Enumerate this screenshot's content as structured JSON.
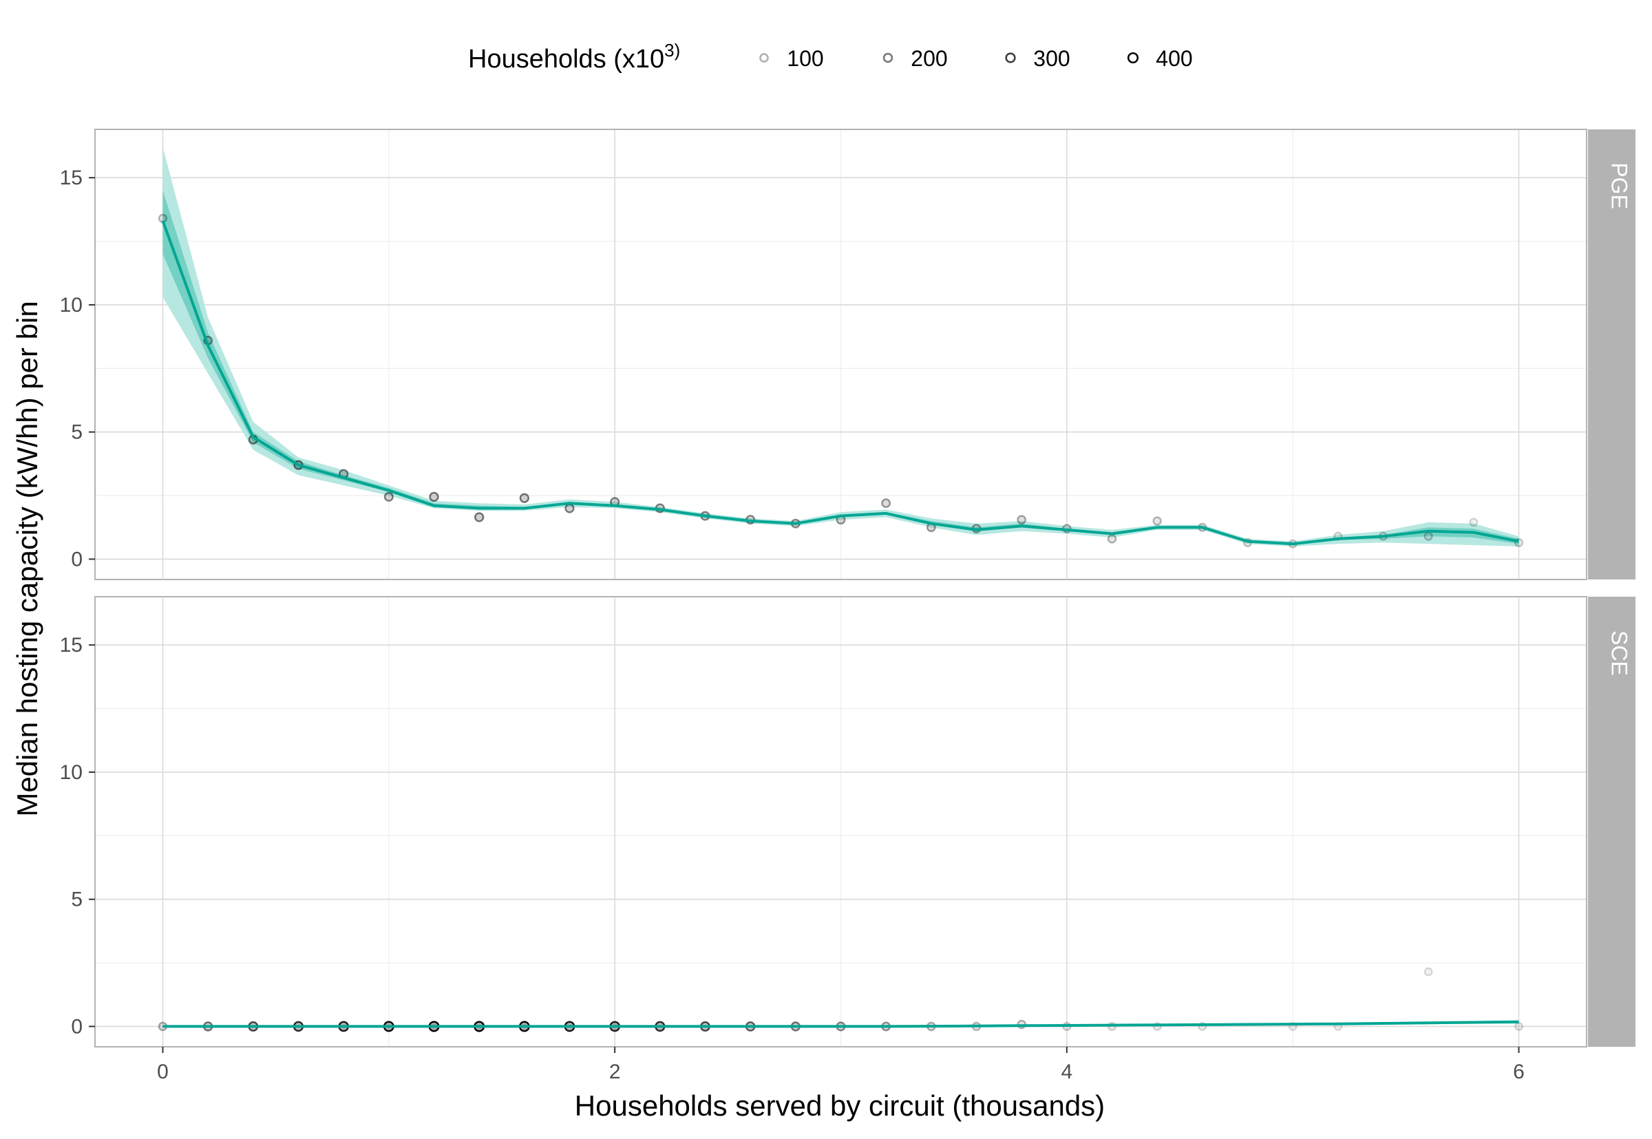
{
  "chart_data": {
    "type": "line",
    "xlabel": "Households served by circuit (thousands)",
    "ylabel": "Median hosting capacity (kW/hh) per bin",
    "xlim": [
      -0.3,
      6.3
    ],
    "ylim": [
      -0.8,
      16.9
    ],
    "x_ticks": [
      0,
      2,
      4,
      6
    ],
    "x_tick_labels": [
      "0",
      "2",
      "4",
      "6"
    ],
    "y_ticks": [
      0,
      5,
      10,
      15
    ],
    "y_tick_labels": [
      "0",
      "5",
      "10",
      "15"
    ],
    "grid": true,
    "legend": {
      "title_text": "Households (x10",
      "title_sup": "3)",
      "position": "top",
      "labels": [
        "100",
        "200",
        "300",
        "400"
      ],
      "values": [
        100,
        200,
        300,
        400
      ]
    },
    "colors": {
      "line": "#00a693",
      "band_outer": "#b3e6df",
      "band_inner": "#5ec9ba",
      "strip_bg": "#b3b3b3",
      "panel_border": "#b3b3b3",
      "grid_major": "#dedede",
      "grid_minor": "#efefef"
    },
    "panels": [
      {
        "label": "PGE",
        "line": {
          "x": [
            0,
            0.2,
            0.4,
            0.6,
            0.8,
            1.0,
            1.2,
            1.4,
            1.6,
            1.8,
            2.0,
            2.2,
            2.4,
            2.6,
            2.8,
            3.0,
            3.2,
            3.4,
            3.6,
            3.8,
            4.0,
            4.2,
            4.4,
            4.6,
            4.8,
            5.0,
            5.2,
            5.4,
            5.6,
            5.8,
            6.0
          ],
          "y": [
            13.3,
            8.4,
            4.8,
            3.7,
            3.2,
            2.7,
            2.1,
            2.0,
            2.0,
            2.2,
            2.1,
            1.95,
            1.7,
            1.5,
            1.4,
            1.7,
            1.8,
            1.4,
            1.15,
            1.3,
            1.15,
            1.0,
            1.25,
            1.25,
            0.7,
            0.6,
            0.8,
            0.9,
            1.1,
            1.05,
            0.7
          ],
          "band_outer_low": [
            10.3,
            7.3,
            4.3,
            3.3,
            2.9,
            2.5,
            2.0,
            1.9,
            1.9,
            2.05,
            2.0,
            1.85,
            1.6,
            1.4,
            1.3,
            1.55,
            1.65,
            1.25,
            0.95,
            1.1,
            1.0,
            0.85,
            1.15,
            1.15,
            0.6,
            0.5,
            0.6,
            0.65,
            0.6,
            0.55,
            0.5
          ],
          "band_outer_high": [
            16.2,
            9.5,
            5.4,
            4.0,
            3.5,
            2.9,
            2.3,
            2.2,
            2.15,
            2.35,
            2.25,
            2.05,
            1.8,
            1.6,
            1.5,
            1.85,
            1.95,
            1.6,
            1.4,
            1.5,
            1.3,
            1.15,
            1.35,
            1.35,
            0.8,
            0.7,
            0.95,
            1.1,
            1.45,
            1.4,
            0.9
          ],
          "band_inner_low": [
            12.0,
            7.9,
            4.6,
            3.55,
            3.1,
            2.65,
            2.05,
            1.95,
            1.95,
            2.15,
            2.05,
            1.9,
            1.65,
            1.45,
            1.35,
            1.65,
            1.75,
            1.35,
            1.1,
            1.25,
            1.1,
            0.95,
            1.2,
            1.2,
            0.65,
            0.55,
            0.75,
            0.8,
            0.9,
            0.85,
            0.6
          ],
          "band_inner_high": [
            14.5,
            8.9,
            5.0,
            3.85,
            3.3,
            2.8,
            2.2,
            2.1,
            2.05,
            2.25,
            2.15,
            2.0,
            1.75,
            1.55,
            1.45,
            1.75,
            1.85,
            1.5,
            1.25,
            1.4,
            1.2,
            1.05,
            1.3,
            1.3,
            0.75,
            0.65,
            0.85,
            0.95,
            1.25,
            1.2,
            0.8
          ]
        },
        "points": {
          "x": [
            0,
            0.2,
            0.4,
            0.6,
            0.8,
            1.0,
            1.2,
            1.4,
            1.6,
            1.8,
            2.0,
            2.2,
            2.4,
            2.6,
            2.8,
            3.0,
            3.2,
            3.4,
            3.6,
            3.8,
            4.0,
            4.2,
            4.4,
            4.6,
            4.8,
            5.0,
            5.2,
            5.4,
            5.6,
            5.8,
            6.0
          ],
          "y": [
            13.4,
            8.6,
            4.7,
            3.7,
            3.35,
            2.45,
            2.45,
            1.65,
            2.4,
            2.0,
            2.25,
            2.0,
            1.7,
            1.55,
            1.4,
            1.55,
            2.2,
            1.25,
            1.2,
            1.55,
            1.2,
            0.8,
            1.5,
            1.25,
            0.65,
            0.6,
            0.9,
            0.9,
            0.9,
            1.45,
            0.65
          ],
          "households": [
            90,
            150,
            190,
            200,
            190,
            180,
            200,
            200,
            200,
            190,
            180,
            180,
            170,
            170,
            160,
            150,
            140,
            140,
            130,
            120,
            110,
            100,
            90,
            80,
            70,
            60,
            50,
            60,
            70,
            40,
            60
          ]
        }
      },
      {
        "label": "SCE",
        "line": {
          "x": [
            0,
            0.2,
            0.4,
            0.6,
            0.8,
            1.0,
            1.2,
            1.4,
            1.6,
            1.8,
            2.0,
            2.2,
            2.4,
            2.6,
            2.8,
            3.0,
            3.2,
            3.4,
            3.6,
            3.8,
            4.0,
            4.2,
            4.4,
            4.6,
            4.8,
            5.0,
            5.2,
            5.4,
            5.6,
            5.8,
            6.0
          ],
          "y": [
            0,
            0,
            0,
            0,
            0,
            0,
            0,
            0,
            0,
            0,
            0,
            0,
            0,
            0,
            0,
            0,
            0,
            0.01,
            0.02,
            0.03,
            0.04,
            0.05,
            0.06,
            0.07,
            0.08,
            0.09,
            0.1,
            0.12,
            0.14,
            0.16,
            0.18
          ],
          "band_outer_low": [
            0,
            0,
            0,
            0,
            0,
            0,
            0,
            0,
            0,
            0,
            0,
            0,
            0,
            0,
            0,
            0,
            0,
            0,
            0.01,
            0.02,
            0.02,
            0.03,
            0.04,
            0.05,
            0.05,
            0.06,
            0.07,
            0.08,
            0.09,
            0.1,
            0.1
          ],
          "band_outer_high": [
            0.02,
            0.02,
            0.02,
            0.02,
            0.02,
            0.02,
            0.02,
            0.02,
            0.02,
            0.02,
            0.02,
            0.02,
            0.02,
            0.02,
            0.02,
            0.02,
            0.03,
            0.04,
            0.05,
            0.06,
            0.07,
            0.08,
            0.09,
            0.1,
            0.11,
            0.12,
            0.14,
            0.16,
            0.18,
            0.21,
            0.24
          ],
          "band_inner_low": [
            0,
            0,
            0,
            0,
            0,
            0,
            0,
            0,
            0,
            0,
            0,
            0,
            0,
            0,
            0,
            0,
            0,
            0.005,
            0.015,
            0.025,
            0.03,
            0.04,
            0.05,
            0.06,
            0.065,
            0.075,
            0.085,
            0.1,
            0.115,
            0.13,
            0.14
          ],
          "band_inner_high": [
            0.01,
            0.01,
            0.01,
            0.01,
            0.01,
            0.01,
            0.01,
            0.01,
            0.01,
            0.01,
            0.01,
            0.01,
            0.01,
            0.01,
            0.01,
            0.01,
            0.02,
            0.025,
            0.035,
            0.045,
            0.055,
            0.065,
            0.075,
            0.085,
            0.095,
            0.105,
            0.12,
            0.14,
            0.16,
            0.19,
            0.21
          ]
        },
        "points": {
          "x": [
            0,
            0.2,
            0.4,
            0.6,
            0.8,
            1.0,
            1.2,
            1.4,
            1.6,
            1.8,
            2.0,
            2.2,
            2.4,
            2.6,
            2.8,
            3.0,
            3.2,
            3.4,
            3.6,
            3.8,
            4.0,
            4.2,
            4.4,
            4.6,
            5.0,
            5.2,
            5.6,
            6.0
          ],
          "y": [
            0,
            0,
            0,
            0,
            0,
            0,
            0,
            0,
            0,
            0,
            0,
            0,
            0,
            0,
            0,
            0,
            0,
            0,
            0,
            0.08,
            0,
            0,
            0,
            0,
            0,
            0,
            2.15,
            0
          ],
          "households": [
            110,
            210,
            280,
            330,
            360,
            400,
            410,
            410,
            400,
            380,
            360,
            330,
            280,
            240,
            200,
            170,
            150,
            110,
            90,
            100,
            60,
            50,
            40,
            40,
            30,
            30,
            30,
            40
          ]
        }
      }
    ]
  }
}
